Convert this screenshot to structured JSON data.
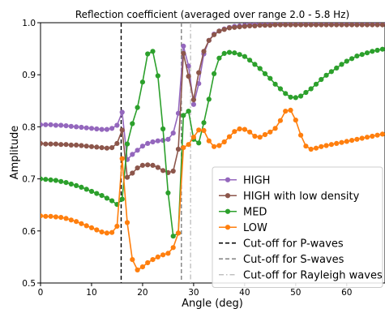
{
  "chart_data": {
    "type": "line",
    "title": "Reflection coefficient (averaged over range 2.0 - 5.8 Hz)",
    "xlabel": "Angle (deg)",
    "ylabel": "Amplitude",
    "xlim": [
      0,
      67.5
    ],
    "ylim": [
      0.5,
      1.0
    ],
    "x_ticks": [
      0,
      10,
      20,
      30,
      40,
      50,
      60
    ],
    "y_ticks": [
      0.5,
      0.6,
      0.7,
      0.8,
      0.9,
      1.0
    ],
    "x_tick_labels": [
      "0",
      "10",
      "20",
      "30",
      "40",
      "50",
      "60"
    ],
    "y_tick_labels": [
      "0.5",
      "0.6",
      "0.7",
      "0.8",
      "0.9",
      "1.0"
    ],
    "grid": false,
    "legend_position": "lower-right",
    "x": [
      0,
      1,
      2,
      3,
      4,
      5,
      6,
      7,
      8,
      9,
      10,
      11,
      12,
      13,
      14,
      15,
      16,
      17,
      18,
      19,
      20,
      21,
      22,
      23,
      24,
      25,
      26,
      27,
      28,
      29,
      30,
      31,
      32,
      33,
      34,
      35,
      36,
      37,
      38,
      39,
      40,
      41,
      42,
      43,
      44,
      45,
      46,
      47,
      48,
      49,
      50,
      51,
      52,
      53,
      54,
      55,
      56,
      57,
      58,
      59,
      60,
      61,
      62,
      63,
      64,
      65,
      66,
      67
    ],
    "series": [
      {
        "name": "HIGH",
        "color": "#9467bd",
        "values": [
          0.804,
          0.804,
          0.804,
          0.803,
          0.803,
          0.802,
          0.801,
          0.8,
          0.799,
          0.798,
          0.797,
          0.796,
          0.795,
          0.795,
          0.797,
          0.803,
          0.828,
          0.737,
          0.747,
          0.755,
          0.763,
          0.768,
          0.771,
          0.773,
          0.774,
          0.776,
          0.788,
          0.826,
          0.955,
          0.917,
          0.843,
          0.883,
          0.94,
          0.966,
          0.978,
          0.984,
          0.988,
          0.991,
          0.993,
          0.994,
          0.995,
          0.996,
          0.997,
          0.997,
          0.998,
          0.998,
          0.998,
          0.999,
          0.999,
          0.999,
          0.999,
          0.999,
          0.999,
          0.999,
          0.999,
          0.999,
          0.999,
          0.999,
          0.999,
          0.999,
          0.999,
          0.999,
          0.999,
          0.999,
          0.999,
          0.999,
          0.999,
          0.999
        ]
      },
      {
        "name": "HIGH with low density",
        "color": "#8c564b",
        "values": [
          0.768,
          0.767,
          0.767,
          0.767,
          0.766,
          0.766,
          0.765,
          0.765,
          0.764,
          0.763,
          0.762,
          0.761,
          0.76,
          0.759,
          0.76,
          0.768,
          0.794,
          0.703,
          0.711,
          0.721,
          0.726,
          0.727,
          0.726,
          0.722,
          0.716,
          0.712,
          0.715,
          0.757,
          0.941,
          0.897,
          0.852,
          0.904,
          0.945,
          0.966,
          0.977,
          0.984,
          0.987,
          0.99,
          0.991,
          0.992,
          0.993,
          0.994,
          0.994,
          0.995,
          0.995,
          0.995,
          0.996,
          0.996,
          0.996,
          0.996,
          0.996,
          0.996,
          0.996,
          0.996,
          0.996,
          0.996,
          0.996,
          0.996,
          0.996,
          0.996,
          0.996,
          0.996,
          0.996,
          0.996,
          0.996,
          0.996,
          0.996,
          0.996
        ]
      },
      {
        "name": "MED",
        "color": "#2ca02c",
        "values": [
          0.7,
          0.699,
          0.698,
          0.697,
          0.695,
          0.693,
          0.69,
          0.687,
          0.684,
          0.68,
          0.676,
          0.672,
          0.668,
          0.663,
          0.658,
          0.651,
          0.661,
          0.767,
          0.806,
          0.837,
          0.886,
          0.94,
          0.945,
          0.898,
          0.796,
          0.673,
          0.59,
          0.596,
          0.822,
          0.83,
          0.776,
          0.769,
          0.808,
          0.853,
          0.902,
          0.932,
          0.941,
          0.943,
          0.942,
          0.939,
          0.935,
          0.928,
          0.92,
          0.912,
          0.902,
          0.893,
          0.882,
          0.873,
          0.864,
          0.857,
          0.856,
          0.859,
          0.866,
          0.873,
          0.882,
          0.891,
          0.899,
          0.906,
          0.913,
          0.92,
          0.926,
          0.931,
          0.936,
          0.939,
          0.942,
          0.945,
          0.947,
          0.949
        ]
      },
      {
        "name": "LOW",
        "color": "#ff7f0e",
        "values": [
          0.629,
          0.628,
          0.628,
          0.627,
          0.626,
          0.624,
          0.621,
          0.618,
          0.614,
          0.61,
          0.606,
          0.602,
          0.598,
          0.596,
          0.597,
          0.609,
          0.739,
          0.616,
          0.545,
          0.525,
          0.531,
          0.539,
          0.545,
          0.55,
          0.554,
          0.557,
          0.568,
          0.596,
          0.76,
          0.766,
          0.78,
          0.794,
          0.793,
          0.773,
          0.762,
          0.764,
          0.771,
          0.781,
          0.791,
          0.796,
          0.795,
          0.79,
          0.782,
          0.78,
          0.785,
          0.79,
          0.797,
          0.812,
          0.83,
          0.832,
          0.813,
          0.784,
          0.763,
          0.757,
          0.759,
          0.762,
          0.764,
          0.766,
          0.768,
          0.77,
          0.772,
          0.774,
          0.776,
          0.778,
          0.78,
          0.782,
          0.784,
          0.786
        ]
      }
    ],
    "vlines": [
      {
        "name": "Cut-off for P-waves",
        "x": 15.8,
        "color": "#000000",
        "dash": "dashed"
      },
      {
        "name": "Cut-off for S-waves",
        "x": 27.6,
        "color": "#808080",
        "dash": "dashed"
      },
      {
        "name": "Cut-off for Rayleigh waves",
        "x": 29.4,
        "color": "#c0c0c0",
        "dash": "dashdot"
      }
    ]
  }
}
